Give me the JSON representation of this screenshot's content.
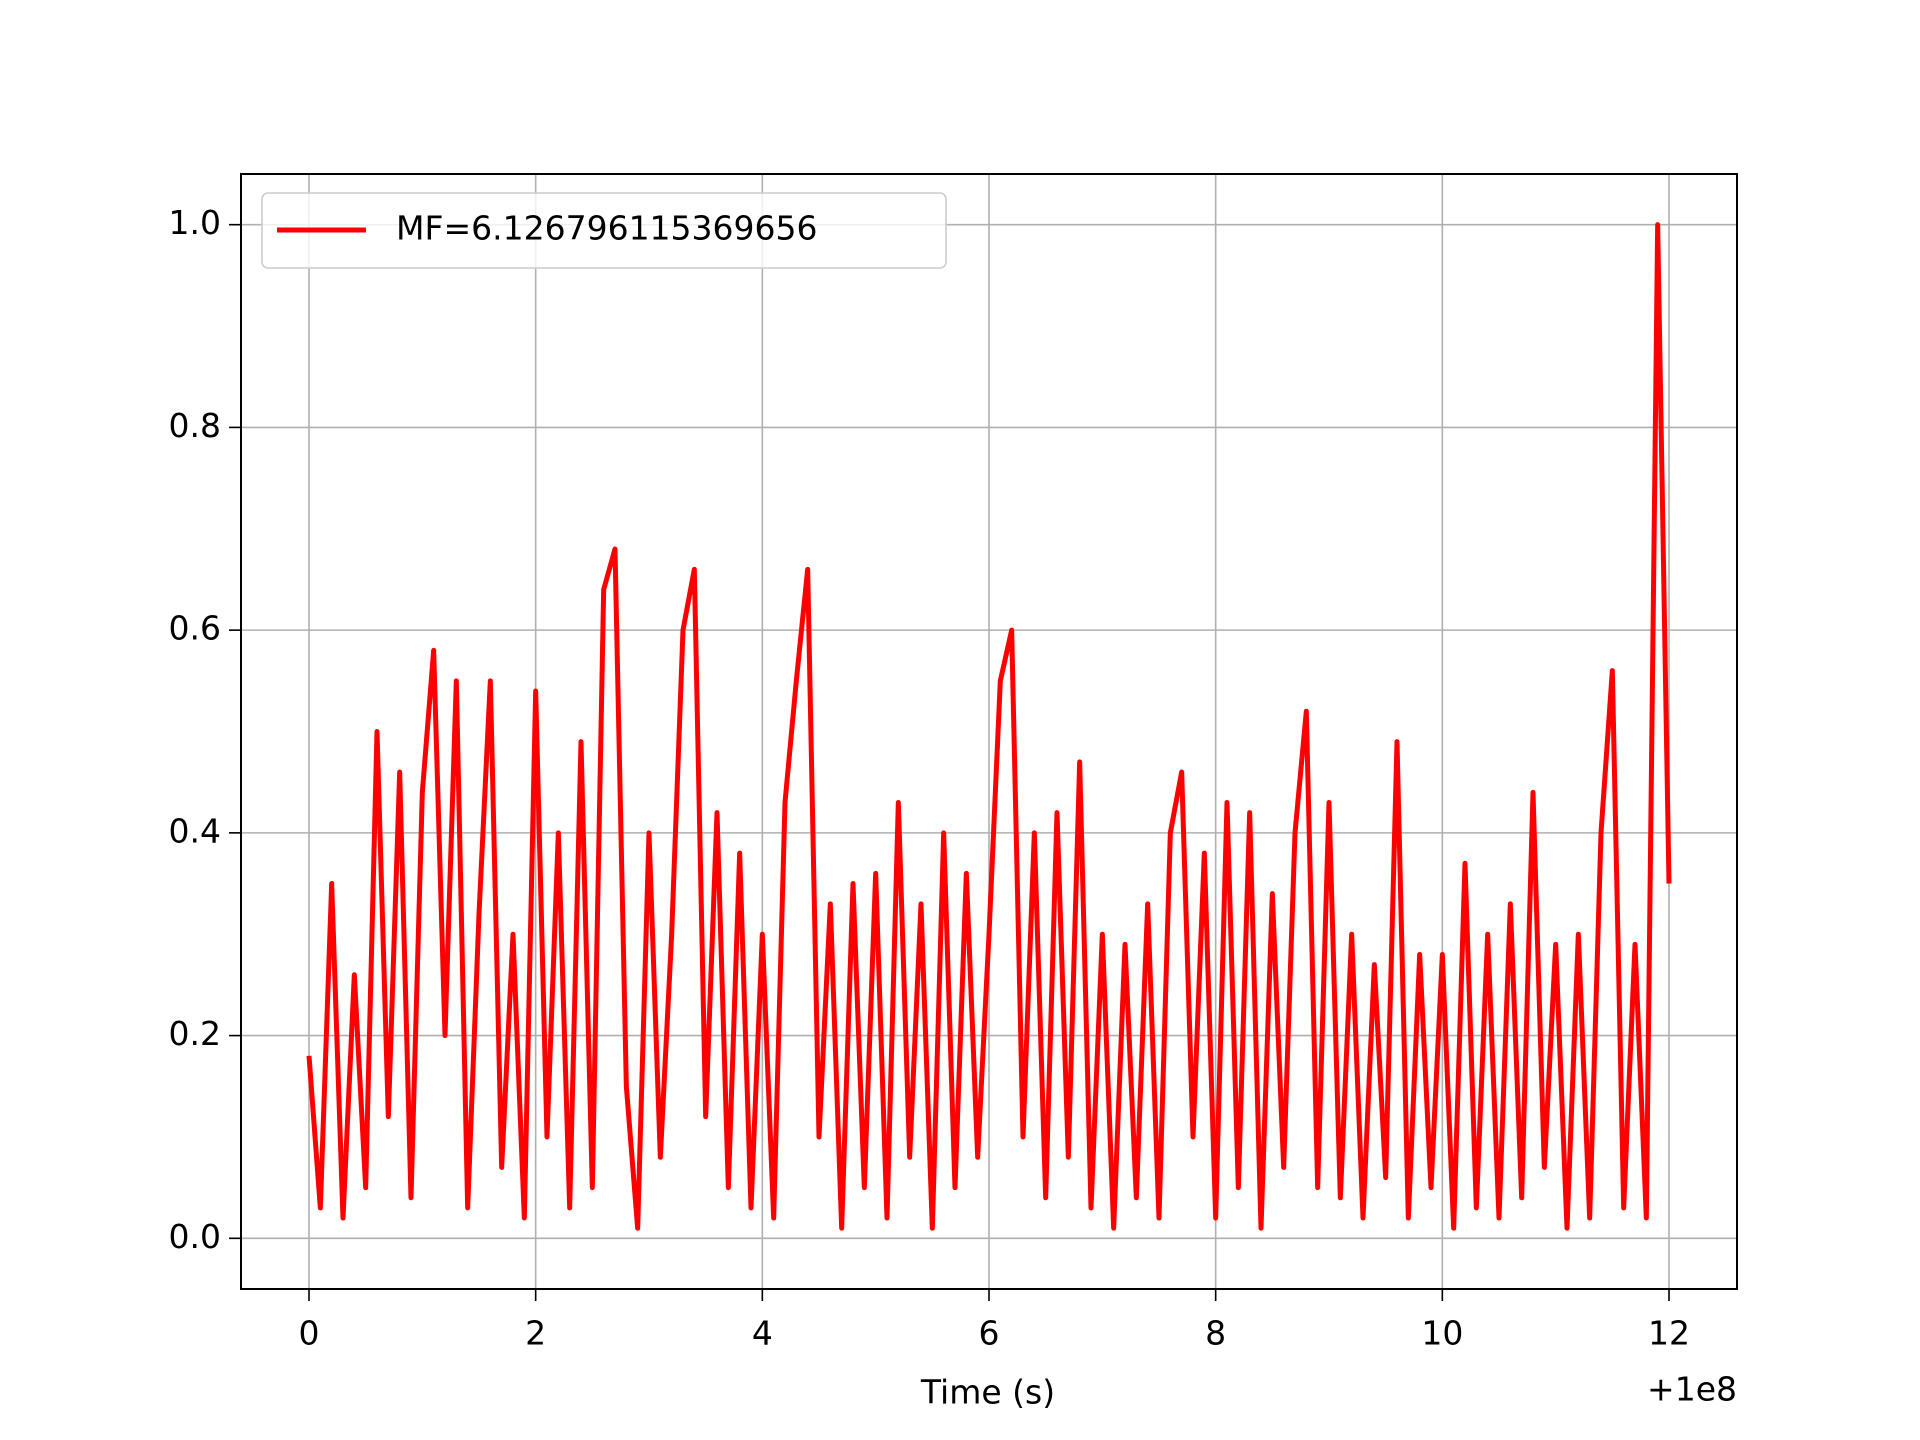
{
  "chart_data": {
    "type": "line",
    "xlabel": "Time (s)",
    "x_offset_label": "+1e8",
    "x": [
      0,
      0.1,
      0.2,
      0.3,
      0.4,
      0.5,
      0.6,
      0.7,
      0.8,
      0.9,
      1,
      1.1,
      1.2,
      1.3,
      1.4,
      1.5,
      1.6,
      1.7,
      1.8,
      1.9,
      2,
      2.1,
      2.2,
      2.3,
      2.4,
      2.5,
      2.6,
      2.7,
      2.8,
      2.9,
      3,
      3.1,
      3.2,
      3.3,
      3.4,
      3.5,
      3.6,
      3.7,
      3.8,
      3.9,
      4,
      4.1,
      4.2,
      4.3,
      4.4,
      4.5,
      4.6,
      4.7,
      4.8,
      4.9,
      5,
      5.1,
      5.2,
      5.3,
      5.4,
      5.5,
      5.6,
      5.7,
      5.8,
      5.9,
      6,
      6.1,
      6.2,
      6.3,
      6.4,
      6.5,
      6.6,
      6.7,
      6.8,
      6.9,
      7,
      7.1,
      7.2,
      7.3,
      7.4,
      7.5,
      7.6,
      7.7,
      7.8,
      7.9,
      8,
      8.1,
      8.2,
      8.3,
      8.4,
      8.5,
      8.6,
      8.7,
      8.8,
      8.9,
      9,
      9.1,
      9.2,
      9.3,
      9.4,
      9.5,
      9.6,
      9.7,
      9.8,
      9.9,
      10,
      10.1,
      10.2,
      10.3,
      10.4,
      10.5,
      10.6,
      10.7,
      10.8,
      10.9,
      11,
      11.1,
      11.2,
      11.3,
      11.4,
      11.5,
      11.6,
      11.7,
      11.8,
      11.9,
      12
    ],
    "series": [
      {
        "name": "MF=6.126796115369656",
        "color": "#ff0000",
        "values": [
          0.18,
          0.03,
          0.35,
          0.02,
          0.26,
          0.05,
          0.5,
          0.12,
          0.46,
          0.04,
          0.44,
          0.58,
          0.2,
          0.55,
          0.03,
          0.32,
          0.55,
          0.07,
          0.3,
          0.02,
          0.54,
          0.1,
          0.4,
          0.03,
          0.49,
          0.05,
          0.64,
          0.68,
          0.15,
          0.01,
          0.4,
          0.08,
          0.3,
          0.6,
          0.66,
          0.12,
          0.42,
          0.05,
          0.38,
          0.03,
          0.3,
          0.02,
          0.43,
          0.55,
          0.66,
          0.1,
          0.33,
          0.01,
          0.35,
          0.05,
          0.36,
          0.02,
          0.43,
          0.08,
          0.33,
          0.01,
          0.4,
          0.05,
          0.36,
          0.08,
          0.3,
          0.55,
          0.6,
          0.1,
          0.4,
          0.04,
          0.42,
          0.08,
          0.47,
          0.03,
          0.3,
          0.01,
          0.29,
          0.04,
          0.33,
          0.02,
          0.4,
          0.46,
          0.1,
          0.38,
          0.02,
          0.43,
          0.05,
          0.42,
          0.01,
          0.34,
          0.07,
          0.4,
          0.52,
          0.05,
          0.43,
          0.04,
          0.3,
          0.02,
          0.27,
          0.06,
          0.49,
          0.02,
          0.28,
          0.05,
          0.28,
          0.01,
          0.37,
          0.03,
          0.3,
          0.02,
          0.33,
          0.04,
          0.44,
          0.07,
          0.29,
          0.01,
          0.3,
          0.02,
          0.4,
          0.56,
          0.03,
          0.29,
          0.02,
          1.0,
          0.35
        ]
      }
    ],
    "xlim": [
      -0.6,
      12.6
    ],
    "xticks": [
      0,
      2,
      4,
      6,
      8,
      10,
      12
    ],
    "ylim": [
      -0.05,
      1.05
    ],
    "yticks": [
      {
        "value": 0,
        "label": "0.0"
      },
      0.2,
      0.4,
      0.6,
      0.8,
      {
        "value": 1,
        "label": "1.0"
      }
    ],
    "grid": true,
    "legend": "upper left"
  }
}
